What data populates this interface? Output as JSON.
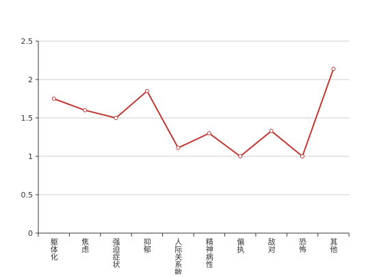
{
  "chart_data": {
    "type": "line",
    "categories": [
      "躯体化",
      "焦虑",
      "强迫症状",
      "抑郁",
      "人际关系敏感",
      "精神病性",
      "偏执",
      "敌对",
      "恐怖",
      "其他"
    ],
    "values": [
      1.75,
      1.6,
      1.5,
      1.85,
      1.11,
      1.3,
      1.0,
      1.33,
      1.0,
      2.14
    ],
    "color": "#c23531",
    "ylim": [
      0,
      2.5
    ],
    "yticks": [
      0,
      0.5,
      1,
      1.5,
      2,
      2.5
    ],
    "grid": true
  }
}
